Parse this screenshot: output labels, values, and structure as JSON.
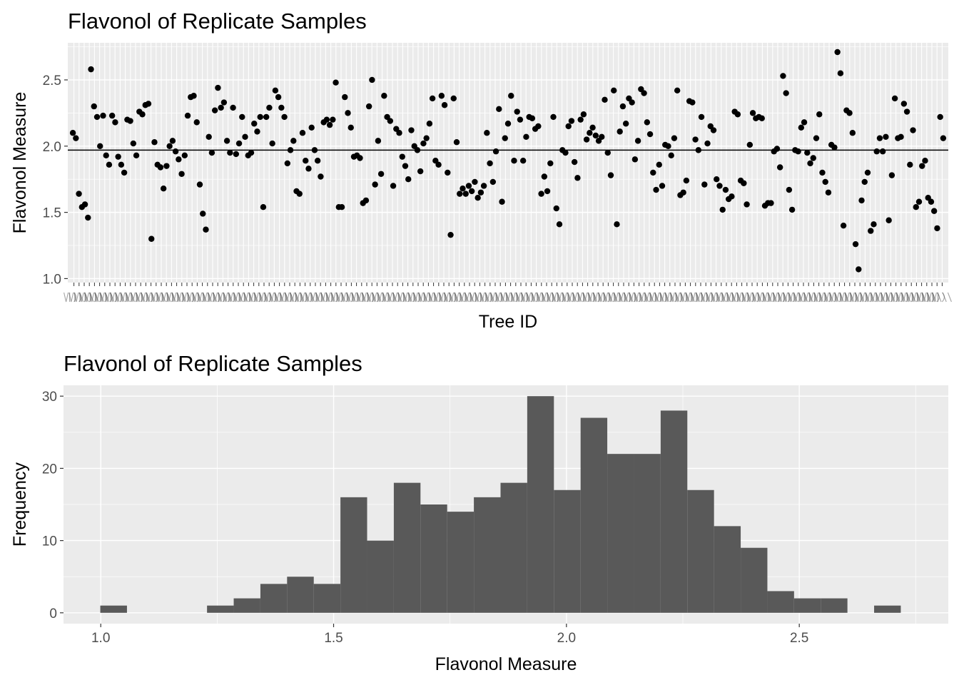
{
  "chart_data": [
    {
      "type": "scatter",
      "title": "Flavonol of Replicate Samples",
      "xlabel": "Tree ID",
      "ylabel": "Flavonol Measure",
      "x_axis": "categorical (Tree IDs, labels overlapping and unreadable)",
      "ylim": [
        0.97,
        2.78
      ],
      "yticks": [
        1.0,
        1.5,
        2.0,
        2.5
      ],
      "ytick_labels": [
        "1.0",
        "1.5",
        "2.0",
        "2.5"
      ],
      "reference_line": 1.97,
      "grid": true,
      "point_color": "#000000",
      "panel_color": "#ebebeb",
      "values": [
        2.1,
        2.06,
        1.64,
        1.54,
        1.56,
        1.46,
        2.58,
        2.3,
        2.22,
        2.0,
        2.23,
        1.93,
        1.86,
        2.23,
        2.18,
        1.92,
        1.86,
        1.8,
        2.2,
        2.19,
        2.02,
        1.93,
        2.26,
        2.24,
        2.31,
        2.32,
        1.3,
        2.03,
        1.86,
        1.84,
        1.68,
        1.85,
        2.0,
        2.04,
        1.96,
        1.9,
        1.79,
        1.93,
        2.23,
        2.37,
        2.38,
        2.18,
        1.71,
        1.49,
        1.37,
        2.07,
        1.95,
        2.27,
        2.44,
        2.29,
        2.33,
        2.04,
        1.95,
        2.29,
        1.94,
        2.02,
        2.22,
        2.07,
        1.93,
        1.95,
        2.17,
        2.11,
        2.22,
        1.54,
        2.22,
        2.29,
        2.02,
        2.42,
        2.37,
        2.29,
        2.22,
        1.87,
        1.97,
        2.04,
        1.66,
        1.64,
        2.1,
        1.89,
        1.83,
        2.14,
        1.97,
        1.89,
        1.77,
        2.18,
        2.2,
        2.16,
        2.2,
        2.48,
        1.54,
        1.54,
        2.37,
        2.25,
        2.14,
        1.92,
        1.93,
        1.91,
        1.57,
        1.59,
        2.3,
        2.5,
        1.71,
        2.04,
        1.79,
        2.38,
        2.22,
        2.19,
        1.7,
        2.13,
        2.1,
        1.92,
        1.85,
        1.75,
        2.12,
        2.0,
        1.97,
        1.81,
        2.02,
        2.06,
        2.17,
        2.36,
        1.89,
        1.86,
        2.38,
        2.31,
        1.8,
        1.33,
        2.36,
        2.03,
        1.64,
        1.68,
        1.64,
        1.7,
        1.66,
        1.73,
        1.61,
        1.65,
        1.7,
        2.1,
        1.87,
        1.73,
        1.96,
        2.28,
        1.58,
        2.06,
        2.17,
        2.38,
        1.89,
        2.26,
        2.2,
        1.89,
        2.07,
        2.22,
        2.21,
        2.13,
        2.15,
        1.64,
        1.77,
        1.66,
        1.87,
        2.22,
        1.53,
        1.41,
        1.97,
        1.95,
        2.15,
        2.19,
        1.88,
        1.76,
        2.2,
        2.24,
        2.05,
        2.1,
        2.14,
        2.08,
        2.04,
        2.07,
        2.35,
        1.95,
        1.78,
        2.42,
        1.41,
        2.11,
        2.3,
        2.17,
        2.36,
        2.33,
        1.9,
        2.04,
        2.43,
        2.4,
        2.18,
        2.09,
        1.8,
        1.67,
        1.86,
        1.7,
        2.01,
        2.0,
        1.93,
        2.06,
        2.42,
        1.63,
        1.65,
        1.74,
        2.34,
        2.33,
        2.05,
        1.97,
        2.22,
        1.71,
        2.02,
        2.15,
        2.12,
        1.75,
        1.7,
        1.52,
        1.67,
        1.6,
        1.62,
        2.26,
        2.24,
        1.74,
        1.72,
        1.56,
        2.01,
        2.25,
        2.21,
        2.22,
        2.21,
        1.55,
        1.57,
        1.57,
        1.96,
        1.98,
        1.84,
        2.53,
        2.4,
        1.67,
        1.52,
        1.97,
        1.96,
        2.14,
        2.18,
        1.95,
        1.87,
        1.91,
        2.06,
        2.24,
        1.8,
        1.73,
        1.65,
        2.01,
        1.99,
        2.71,
        2.55,
        1.4,
        2.27,
        2.25,
        2.1,
        1.26,
        1.07,
        1.59,
        1.73,
        1.8,
        1.36,
        1.41,
        1.96,
        2.06,
        1.96,
        2.07,
        1.44,
        1.78,
        2.36,
        2.06,
        2.07,
        2.32,
        2.26,
        1.86,
        2.12,
        1.54,
        1.58,
        1.85,
        1.89,
        1.61,
        1.58,
        1.51,
        1.38,
        2.22,
        2.06
      ]
    },
    {
      "type": "bar",
      "title": "Flavonol of Replicate Samples",
      "xlabel": "Flavonol Measure",
      "ylabel": "Frequency",
      "xlim": [
        0.92,
        2.82
      ],
      "ylim": [
        -1.5,
        31.5
      ],
      "xticks": [
        1.0,
        1.5,
        2.0,
        2.5
      ],
      "xtick_labels": [
        "1.0",
        "1.5",
        "2.0",
        "2.5"
      ],
      "yticks": [
        0,
        10,
        20,
        30
      ],
      "ytick_labels": [
        "0",
        "10",
        "20",
        "30"
      ],
      "bin_start": 0.999,
      "bin_width": 0.0573,
      "bar_color": "#595959",
      "panel_color": "#ebebeb",
      "grid": true,
      "values": [
        1,
        0,
        0,
        0,
        1,
        2,
        4,
        5,
        4,
        16,
        10,
        18,
        15,
        14,
        16,
        18,
        30,
        17,
        27,
        22,
        22,
        28,
        17,
        12,
        9,
        3,
        2,
        2,
        0,
        1
      ]
    }
  ]
}
